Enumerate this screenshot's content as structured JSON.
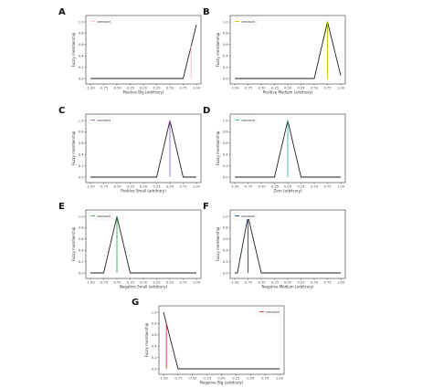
{
  "colors": {
    "membership_line": "#222222",
    "axis": "#333333"
  },
  "chart_data": [
    {
      "panel": "A",
      "type": "line",
      "xlabel": "Positive Big (arbitrary)",
      "ylabel": "Fuzzy membership",
      "xlim": [
        -1.0,
        1.0
      ],
      "ylim": [
        0.0,
        1.0
      ],
      "x_ticks": [
        "-1.00",
        "-0.75",
        "-0.50",
        "-0.25",
        "0.00",
        "0.25",
        "0.50",
        "0.75",
        "1.00"
      ],
      "y_ticks": [
        "0.0",
        "0.2",
        "0.4",
        "0.6",
        "0.8",
        "1.0"
      ],
      "legend_label": "centroid",
      "legend_position": "top-left",
      "series": [
        {
          "x": [
            -1.0,
            0.75,
            1.0
          ],
          "y": [
            0.0,
            0.0,
            0.95
          ]
        }
      ],
      "centroid": {
        "x": 0.9,
        "color": "#f5b7d6"
      }
    },
    {
      "panel": "B",
      "type": "line",
      "xlabel": "Positive Medium (arbitrary)",
      "ylabel": "Fuzzy membership",
      "xlim": [
        -1.0,
        1.0
      ],
      "ylim": [
        0.0,
        1.0
      ],
      "x_ticks": [
        "-1.00",
        "-0.75",
        "-0.50",
        "-0.25",
        "0.00",
        "0.25",
        "0.50",
        "0.75",
        "1.00"
      ],
      "y_ticks": [
        "0.0",
        "0.2",
        "0.4",
        "0.6",
        "0.8",
        "1.0"
      ],
      "legend_label": "centroid",
      "legend_position": "top-left",
      "series": [
        {
          "x": [
            -1.0,
            0.5,
            0.75,
            1.0
          ],
          "y": [
            0.0,
            0.0,
            1.0,
            0.05
          ]
        }
      ],
      "centroid": {
        "x": 0.75,
        "color": "#c9c400"
      }
    },
    {
      "panel": "C",
      "type": "line",
      "xlabel": "Positive Small (arbitrary)",
      "ylabel": "Fuzzy membership",
      "xlim": [
        -1.0,
        1.0
      ],
      "ylim": [
        0.0,
        1.0
      ],
      "x_ticks": [
        "-1.00",
        "-0.75",
        "-0.50",
        "-0.25",
        "0.00",
        "0.25",
        "0.50",
        "0.75",
        "1.00"
      ],
      "y_ticks": [
        "0.0",
        "0.2",
        "0.4",
        "0.6",
        "0.8",
        "1.0"
      ],
      "legend_label": "centroid",
      "legend_position": "top-left",
      "series": [
        {
          "x": [
            -1.0,
            0.25,
            0.5,
            0.75,
            1.0
          ],
          "y": [
            0.0,
            0.0,
            1.0,
            0.0,
            0.0
          ]
        }
      ],
      "centroid": {
        "x": 0.5,
        "color": "#b05fd1"
      }
    },
    {
      "panel": "D",
      "type": "line",
      "xlabel": "Zero (arbitrary)",
      "ylabel": "Fuzzy membership",
      "xlim": [
        -1.0,
        1.0
      ],
      "ylim": [
        0.0,
        1.0
      ],
      "x_ticks": [
        "-1.00",
        "-0.75",
        "-0.50",
        "-0.25",
        "0.00",
        "0.25",
        "0.50",
        "0.75",
        "1.00"
      ],
      "y_ticks": [
        "0.0",
        "0.2",
        "0.4",
        "0.6",
        "0.8",
        "1.0"
      ],
      "legend_label": "centroid",
      "legend_position": "top-left",
      "series": [
        {
          "x": [
            -1.0,
            -0.25,
            0.0,
            0.25,
            1.0
          ],
          "y": [
            0.0,
            0.0,
            1.0,
            0.0,
            0.0
          ]
        }
      ],
      "centroid": {
        "x": 0.0,
        "color": "#2fbfa4"
      }
    },
    {
      "panel": "E",
      "type": "line",
      "xlabel": "Negative Small (arbitrary)",
      "ylabel": "Fuzzy membership",
      "xlim": [
        -1.0,
        1.0
      ],
      "ylim": [
        0.0,
        1.0
      ],
      "x_ticks": [
        "-1.00",
        "-0.75",
        "-0.50",
        "-0.25",
        "0.00",
        "0.25",
        "0.50",
        "0.75",
        "1.00"
      ],
      "y_ticks": [
        "0.0",
        "0.2",
        "0.4",
        "0.6",
        "0.8",
        "1.0"
      ],
      "legend_label": "centroid",
      "legend_position": "top-left",
      "series": [
        {
          "x": [
            -1.0,
            -0.75,
            -0.5,
            -0.25,
            1.0
          ],
          "y": [
            0.0,
            0.0,
            1.0,
            0.0,
            0.0
          ]
        }
      ],
      "centroid": {
        "x": -0.5,
        "color": "#3cb44b"
      }
    },
    {
      "panel": "F",
      "type": "line",
      "xlabel": "Negative Medium (arbitrary)",
      "ylabel": "Fuzzy membership",
      "xlim": [
        -1.0,
        1.0
      ],
      "ylim": [
        0.0,
        1.0
      ],
      "x_ticks": [
        "-1.00",
        "-0.75",
        "-0.50",
        "-0.25",
        "0.00",
        "0.25",
        "0.50",
        "0.75",
        "1.00"
      ],
      "y_ticks": [
        "0.0",
        "0.2",
        "0.4",
        "0.6",
        "0.8",
        "1.0"
      ],
      "legend_label": "centroid",
      "legend_position": "top-left",
      "series": [
        {
          "x": [
            -1.0,
            -0.95,
            -0.75,
            -0.5,
            1.0
          ],
          "y": [
            0.0,
            0.0,
            1.0,
            0.0,
            0.0
          ]
        }
      ],
      "centroid": {
        "x": -0.75,
        "color": "#2a3fb0"
      }
    },
    {
      "panel": "G",
      "type": "line",
      "xlabel": "Negative Big (arbitrary)",
      "ylabel": "Fuzzy membership",
      "xlim": [
        -1.0,
        1.0
      ],
      "ylim": [
        0.0,
        1.0
      ],
      "x_ticks": [
        "-1.00",
        "-0.75",
        "-0.50",
        "-0.25",
        "0.00",
        "0.25",
        "0.50",
        "0.75",
        "1.00"
      ],
      "y_ticks": [
        "0.0",
        "0.2",
        "0.4",
        "0.6",
        "0.8",
        "1.0"
      ],
      "legend_label": "centroid",
      "legend_position": "top-right",
      "series": [
        {
          "x": [
            -1.0,
            -0.75,
            1.0
          ],
          "y": [
            1.0,
            0.0,
            0.0
          ]
        }
      ],
      "centroid": {
        "x": -0.95,
        "color": "#e03030"
      }
    }
  ]
}
